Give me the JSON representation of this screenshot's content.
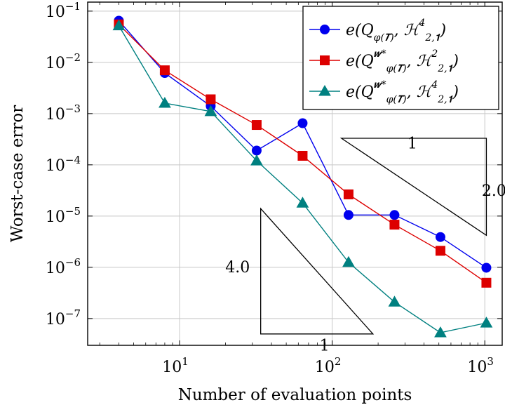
{
  "chart_data": {
    "type": "line",
    "xscale": "log",
    "yscale": "log",
    "xlim": [
      2.5,
      1300
    ],
    "ylim": [
      3e-08,
      0.15
    ],
    "grid": true,
    "legend_position": "top-right",
    "xlabel": "Number of evaluation points",
    "ylabel": "Worst-case error",
    "xticks": [
      {
        "value": 10,
        "mant": "10",
        "exp": "1"
      },
      {
        "value": 100,
        "mant": "10",
        "exp": "2"
      },
      {
        "value": 1000,
        "mant": "10",
        "exp": "3"
      }
    ],
    "yticks": [
      {
        "value": 0.1,
        "mant": "10",
        "exp": "−1"
      },
      {
        "value": 0.01,
        "mant": "10",
        "exp": "−2"
      },
      {
        "value": 0.001,
        "mant": "10",
        "exp": "−3"
      },
      {
        "value": 0.0001,
        "mant": "10",
        "exp": "−4"
      },
      {
        "value": 1e-05,
        "mant": "10",
        "exp": "−5"
      },
      {
        "value": 1e-06,
        "mant": "10",
        "exp": "−6"
      },
      {
        "value": 1e-07,
        "mant": "10",
        "exp": "−7"
      }
    ],
    "series": [
      {
        "name": "e(Q_{φ(T)}, H^4_{2,1})",
        "color": "#0000ee",
        "marker": "circle",
        "x": [
          4,
          8,
          16,
          32,
          64,
          128,
          256,
          512,
          1024
        ],
        "y": [
          0.065,
          0.0062,
          0.0014,
          0.00019,
          0.00065,
          1.05e-05,
          1.05e-05,
          3.9e-06,
          9.8e-07
        ]
      },
      {
        "name": "e(Q^{w*}_{φ(T)}, H^2_{2,1})",
        "color": "#dd0000",
        "marker": "square",
        "x": [
          4,
          8,
          16,
          32,
          64,
          128,
          256,
          512,
          1024
        ],
        "y": [
          0.055,
          0.007,
          0.0019,
          0.0006,
          0.00015,
          2.65e-05,
          6.8e-06,
          2.1e-06,
          5e-07
        ]
      },
      {
        "name": "e(Q^{w*}_{φ(T)}, H^4_{2,1})",
        "color": "#008080",
        "marker": "triangle",
        "x": [
          4,
          8,
          16,
          32,
          64,
          128,
          256,
          512,
          1024
        ],
        "y": [
          0.052,
          0.0016,
          0.0011,
          0.00012,
          1.8e-05,
          1.25e-06,
          2.1e-07,
          5.3e-08,
          8.2e-08
        ]
      }
    ],
    "slope_triangles": [
      {
        "vertices": [
          [
            115,
            0.00033
          ],
          [
            1024,
            0.00033
          ],
          [
            1024,
            4.2e-06
          ]
        ],
        "run_label": "1",
        "rise_label": "2.0",
        "run_label_at": [
          335,
          0.00021
        ],
        "rise_label_at": [
          1150,
          2.5e-05
        ]
      },
      {
        "vertices": [
          [
            34,
            1.4e-05
          ],
          [
            34,
            5e-08
          ],
          [
            185,
            5e-08
          ]
        ],
        "run_label": "1",
        "rise_label": "4.0",
        "run_label_at": [
          89,
          2.35e-08
        ],
        "rise_label_at": [
          24,
          8e-07
        ]
      }
    ],
    "legend": {
      "entries": [
        {
          "base": "Q",
          "sub": "φ(𝑻)",
          "sup": "",
          "space_sup": "4",
          "space_sub": "2,𝟏"
        },
        {
          "base": "Q",
          "sub": "φ(𝑻)",
          "sup": "𝒘*",
          "space_sup": "2",
          "space_sub": "2,𝟏"
        },
        {
          "base": "Q",
          "sub": "φ(𝑻)",
          "sup": "𝒘*",
          "space_sup": "4",
          "space_sub": "2,𝟏"
        }
      ]
    }
  }
}
